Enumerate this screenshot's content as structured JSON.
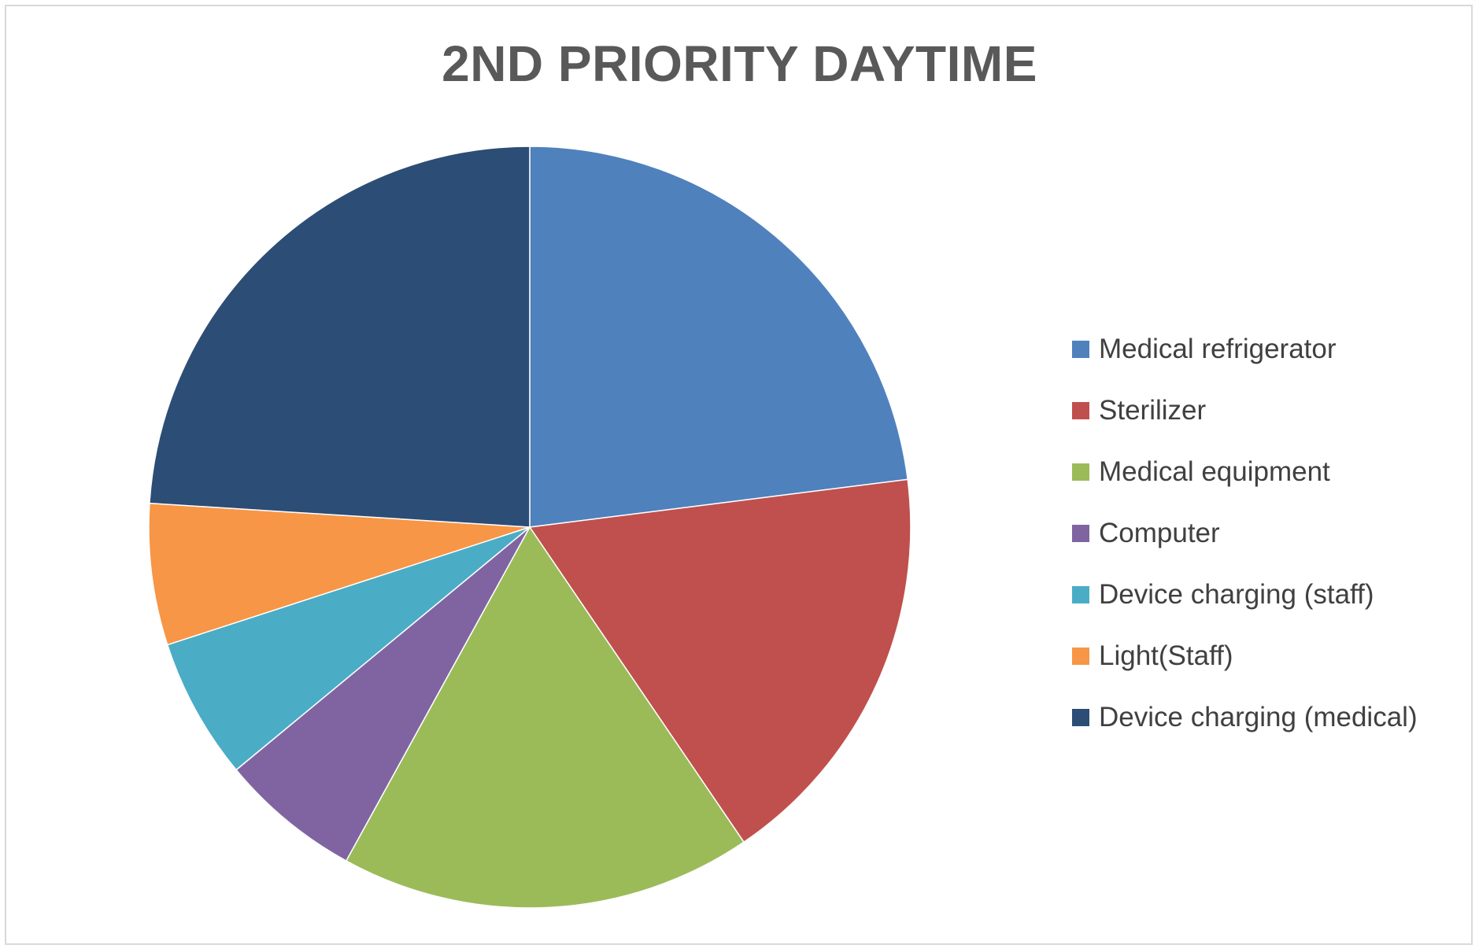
{
  "chart_data": {
    "type": "pie",
    "title": "2ND PRIORITY DAYTIME",
    "start_angle_deg": 0,
    "direction": "clockwise",
    "legend_position": "right",
    "slices": [
      {
        "label": "Medical refrigerator",
        "value": 23.0,
        "color": "#4F81BD"
      },
      {
        "label": "Sterilizer",
        "value": 17.5,
        "color": "#C0504D"
      },
      {
        "label": "Medical equipment",
        "value": 17.5,
        "color": "#9BBB59"
      },
      {
        "label": "Computer",
        "value": 6.0,
        "color": "#8064A2"
      },
      {
        "label": "Device charging (staff)",
        "value": 6.0,
        "color": "#4BACC6"
      },
      {
        "label": "Light(Staff)",
        "value": 6.0,
        "color": "#F79646"
      },
      {
        "label": "Device charging (medical)",
        "value": 24.0,
        "color": "#2C4D75"
      }
    ]
  }
}
